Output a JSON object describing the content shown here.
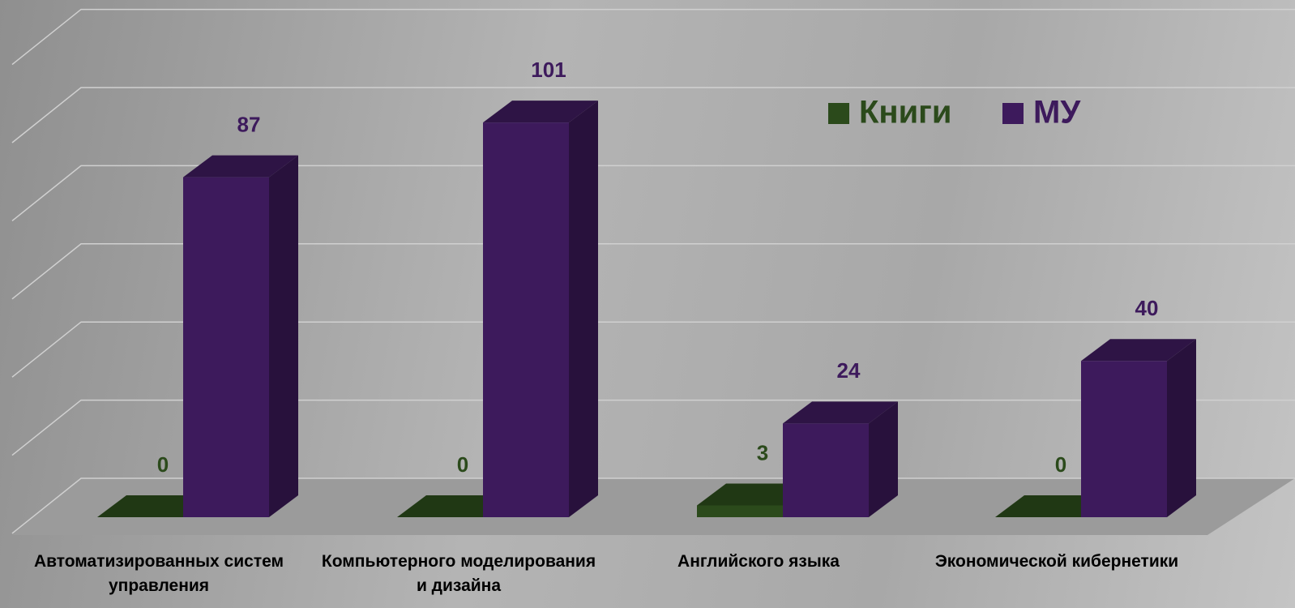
{
  "chart_data": {
    "type": "bar3d",
    "categories": [
      "Автоматизированных систем управления",
      "Компьютерного моделирования и дизайна",
      "Английского языка",
      "Экономической кибернетики"
    ],
    "series": [
      {
        "name": "Книги",
        "color": "#2b4a1b",
        "values": [
          0,
          0,
          3,
          0
        ]
      },
      {
        "name": "МУ",
        "color": "#3d1a5c",
        "values": [
          87,
          101,
          24,
          40
        ]
      }
    ],
    "ylim": [
      0,
      120
    ],
    "yticks": [
      0,
      20,
      40,
      60,
      80,
      100,
      120
    ],
    "grid": true,
    "legend": "top-right"
  }
}
